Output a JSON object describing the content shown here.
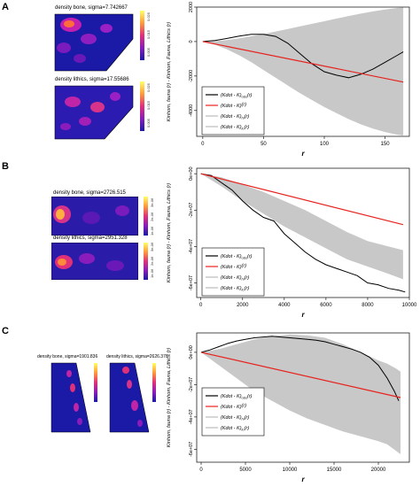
{
  "panels": [
    {
      "letter": "A",
      "maps": [
        {
          "title": "density bone, sigma=7.742667",
          "ticks": [
            "0.025",
            "0.015",
            "0.005"
          ]
        },
        {
          "title": "density lithics, sigma=17.55686",
          "ticks": [
            "0.025",
            "0.015",
            "0.005"
          ]
        }
      ]
    },
    {
      "letter": "B",
      "maps": [
        {
          "title": "density bone, sigma=2726.515",
          "ticks": [
            "3e-06",
            "2e-06",
            "1e-06"
          ]
        },
        {
          "title": "density lithics, sigma=2951.328",
          "ticks": [
            "3e-06",
            "2e-06",
            "1e-06"
          ]
        }
      ]
    },
    {
      "letter": "C",
      "maps": [
        {
          "title": "density bone, sigma=1901.836",
          "ticks": []
        },
        {
          "title": "density lithics, sigma=2626.378",
          "ticks": []
        }
      ]
    }
  ],
  "chart_data": [
    {
      "type": "line",
      "title": "",
      "xlabel": "r",
      "ylabel": "Kinhom, fauna (r) - Kinhom, Fauna, Lithics (r)",
      "xlim": [
        -5,
        170
      ],
      "ylim": [
        -5500,
        2000
      ],
      "xticks": [
        0,
        50,
        100,
        150
      ],
      "yticks": [
        2000,
        0,
        -2000,
        -4000
      ],
      "grid": false,
      "legend_position": "bottom-left",
      "envelope": {
        "x": [
          0,
          10,
          20,
          30,
          40,
          50,
          60,
          70,
          80,
          90,
          100,
          110,
          120,
          130,
          140,
          150,
          160,
          165
        ],
        "upper": [
          0,
          20,
          90,
          190,
          310,
          440,
          580,
          730,
          880,
          1030,
          1180,
          1330,
          1480,
          1620,
          1750,
          1860,
          1950,
          1980
        ],
        "lower": [
          0,
          -180,
          -450,
          -800,
          -1200,
          -1650,
          -2100,
          -2550,
          -3000,
          -3400,
          -3800,
          -4150,
          -4500,
          -4800,
          -5050,
          -5250,
          -5400,
          -5450
        ]
      },
      "series": [
        {
          "name": "(Kdot - K)obs(r)",
          "color": "#000000",
          "x": [
            0,
            10,
            20,
            30,
            40,
            50,
            60,
            70,
            80,
            90,
            100,
            110,
            120,
            130,
            140,
            150,
            160,
            165
          ],
          "y": [
            0,
            60,
            180,
            320,
            420,
            420,
            300,
            -100,
            -700,
            -1300,
            -1750,
            -1950,
            -2100,
            -1900,
            -1600,
            -1200,
            -800,
            -600
          ]
        },
        {
          "name": "(Kdot - K)(r)",
          "color": "#e8221c",
          "x": [
            0,
            165
          ],
          "y": [
            0,
            -2350
          ]
        },
        {
          "name": "(Kdot - K)hi(r)",
          "color": "#bbbbbb",
          "x": [],
          "y": []
        },
        {
          "name": "(Kdot - K)lo(r)",
          "color": "#bbbbbb",
          "x": [],
          "y": []
        }
      ]
    },
    {
      "type": "line",
      "title": "",
      "xlabel": "r",
      "ylabel": "Kinhom, fauna (r) - Kinhom, Fauna, Lithics (r)",
      "xlim": [
        -200,
        10000
      ],
      "ylim": [
        -68000000.0,
        3000000.0
      ],
      "xticks": [
        0,
        2000,
        4000,
        6000,
        8000,
        10000
      ],
      "yticks": [
        0,
        -20000000.0,
        -40000000.0,
        -60000000.0
      ],
      "yticklabels": [
        "0e+00",
        "-2e+07",
        "-4e+07",
        "-6e+07"
      ],
      "grid": false,
      "legend_position": "bottom-left",
      "envelope": {
        "x": [
          0,
          1000,
          2000,
          3000,
          4000,
          5000,
          6000,
          7000,
          8000,
          9000,
          9700
        ],
        "upper": [
          0,
          -2000000.0,
          -6000000.0,
          -10000000.0,
          -15000000.0,
          -20000000.0,
          -26000000.0,
          -32000000.0,
          -37000000.0,
          -40000000.0,
          -42000000.0
        ],
        "lower": [
          0,
          -7000000.0,
          -15000000.0,
          -22000000.0,
          -29000000.0,
          -35000000.0,
          -41000000.0,
          -47000000.0,
          -51000000.0,
          -55000000.0,
          -58000000.0
        ]
      },
      "series": [
        {
          "name": "(Kdot - K)obs(r)",
          "color": "#000000",
          "x": [
            0,
            500,
            1000,
            1500,
            2000,
            2500,
            3000,
            3500,
            4000,
            4500,
            5000,
            5500,
            6000,
            6500,
            7000,
            7500,
            8000,
            8500,
            9000,
            9500,
            9800
          ],
          "y": [
            0,
            -1000000.0,
            -5000000.0,
            -9000000.0,
            -15000000.0,
            -20000000.0,
            -24000000.0,
            -26000000.0,
            -33000000.0,
            -38000000.0,
            -43000000.0,
            -47000000.0,
            -50000000.0,
            -52000000.0,
            -54000000.0,
            -56000000.0,
            -60000000.0,
            -61000000.0,
            -63000000.0,
            -64000000.0,
            -65000000.0
          ]
        },
        {
          "name": "(Kdot - K)(r)",
          "color": "#e8221c",
          "x": [
            0,
            9700
          ],
          "y": [
            0,
            -28000000.0
          ]
        },
        {
          "name": "(Kdot - K)hi(r)",
          "color": "#bbbbbb",
          "x": [],
          "y": []
        },
        {
          "name": "(Kdot - K)lo(r)",
          "color": "#bbbbbb",
          "x": [],
          "y": []
        }
      ]
    },
    {
      "type": "line",
      "title": "",
      "xlabel": "r",
      "ylabel": "Kinhom, fauna (r) - Kinhom, Fauna, Lithics (r)",
      "xlim": [
        -500,
        23500
      ],
      "ylim": [
        -68000000.0,
        12000000.0
      ],
      "xticks": [
        0,
        5000,
        10000,
        15000,
        20000
      ],
      "yticks": [
        0,
        -20000000.0,
        -40000000.0,
        -60000000.0
      ],
      "yticklabels": [
        "0e+00",
        "-2e+07",
        "-4e+07",
        "-6e+07"
      ],
      "grid": false,
      "legend_position": "center-left",
      "envelope": {
        "x": [
          0,
          2000,
          4000,
          6000,
          8000,
          10000,
          12000,
          14000,
          16000,
          18000,
          20000,
          21000,
          22000,
          22500
        ],
        "upper": [
          0,
          2000000.0,
          5000000.0,
          8000000.0,
          10000000.0,
          11000000.0,
          10500000.0,
          9000000.0,
          5000000.0,
          0.0,
          -5000000.0,
          -7000000.0,
          -10000000.0,
          -12000000.0
        ],
        "lower": [
          0,
          -8000000.0,
          -16000000.0,
          -24000000.0,
          -30000000.0,
          -36000000.0,
          -41000000.0,
          -45000000.0,
          -49000000.0,
          -52000000.0,
          -55000000.0,
          -57000000.0,
          -61000000.0,
          -63000000.0
        ]
      },
      "series": [
        {
          "name": "(Kdot - K)obs(r)",
          "color": "#000000",
          "x": [
            0,
            1000,
            2000,
            3000,
            4000,
            5000,
            6000,
            7000,
            8000,
            9000,
            10000,
            11000,
            12000,
            13000,
            14000,
            15000,
            16000,
            17000,
            18000,
            19000,
            20000,
            21000,
            21800,
            22300
          ],
          "y": [
            0,
            1500000.0,
            3500000.0,
            5500000.0,
            7000000.0,
            8000000.0,
            9000000.0,
            9500000.0,
            10000000.0,
            9500000.0,
            9000000.0,
            8500000.0,
            8000000.0,
            7500000.0,
            6500000.0,
            5000000.0,
            3500000.0,
            2000000.0,
            0.0,
            -3000000.0,
            -8000000.0,
            -16000000.0,
            -24000000.0,
            -30000000.0
          ]
        },
        {
          "name": "(Kdot - K)(r)",
          "color": "#e8221c",
          "x": [
            0,
            22500
          ],
          "y": [
            0,
            -28000000.0
          ]
        },
        {
          "name": "(Kdot - K)hi(r)",
          "color": "#bbbbbb",
          "x": [],
          "y": []
        },
        {
          "name": "(Kdot - K)lo(r)",
          "color": "#bbbbbb",
          "x": [],
          "y": []
        }
      ]
    }
  ]
}
